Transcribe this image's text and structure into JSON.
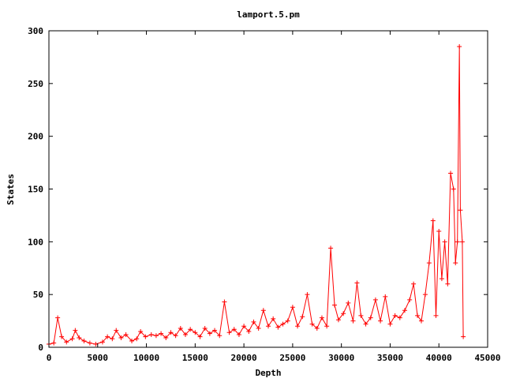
{
  "chart_data": {
    "type": "line",
    "title": "lamport.5.pm",
    "xlabel": "Depth",
    "ylabel": "States",
    "xlim": [
      0,
      45000
    ],
    "ylim": [
      0,
      300
    ],
    "x_ticks": [
      0,
      5000,
      10000,
      15000,
      20000,
      25000,
      30000,
      35000,
      40000,
      45000
    ],
    "y_ticks": [
      0,
      50,
      100,
      150,
      200,
      250,
      300
    ],
    "grid": false,
    "legend": "none",
    "marker": "+",
    "series_color": "#ff0000",
    "series": [
      {
        "x": [
          0,
          500,
          900,
          1300,
          1800,
          2400,
          2700,
          3100,
          3600,
          4200,
          4800,
          5500,
          6000,
          6500,
          6900,
          7400,
          7900,
          8500,
          9000,
          9400,
          9900,
          10500,
          11000,
          11500,
          12000,
          12500,
          13000,
          13500,
          14000,
          14500,
          15000,
          15500,
          16000,
          16500,
          17000,
          17500,
          18000,
          18500,
          19000,
          19500,
          20000,
          20500,
          21000,
          21500,
          22000,
          22500,
          23000,
          23500,
          24000,
          24500,
          25000,
          25500,
          26000,
          26500,
          27000,
          27500,
          28000,
          28500,
          28900,
          29300,
          29700,
          30200,
          30700,
          31200,
          31600,
          32000,
          32500,
          33000,
          33500,
          34000,
          34500,
          35000,
          35500,
          36000,
          36500,
          37000,
          37400,
          37800,
          38200,
          38600,
          39000,
          39400,
          39700,
          40000,
          40300,
          40600,
          40900,
          41200,
          41500,
          41700,
          41900,
          42100,
          42200,
          42400,
          42500
        ],
        "y": [
          3,
          4,
          28,
          10,
          5,
          8,
          16,
          9,
          6,
          4,
          3,
          5,
          10,
          8,
          16,
          9,
          12,
          6,
          8,
          15,
          10,
          12,
          11,
          13,
          9,
          14,
          11,
          18,
          12,
          17,
          14,
          10,
          18,
          13,
          16,
          11,
          43,
          14,
          17,
          12,
          20,
          15,
          24,
          18,
          35,
          20,
          27,
          19,
          22,
          25,
          38,
          20,
          29,
          50,
          22,
          18,
          28,
          20,
          94,
          40,
          26,
          32,
          42,
          25,
          61,
          30,
          22,
          28,
          45,
          25,
          48,
          22,
          30,
          28,
          35,
          45,
          60,
          30,
          25,
          50,
          80,
          120,
          30,
          110,
          65,
          100,
          60,
          165,
          150,
          80,
          100,
          285,
          130,
          100,
          10
        ]
      }
    ]
  }
}
